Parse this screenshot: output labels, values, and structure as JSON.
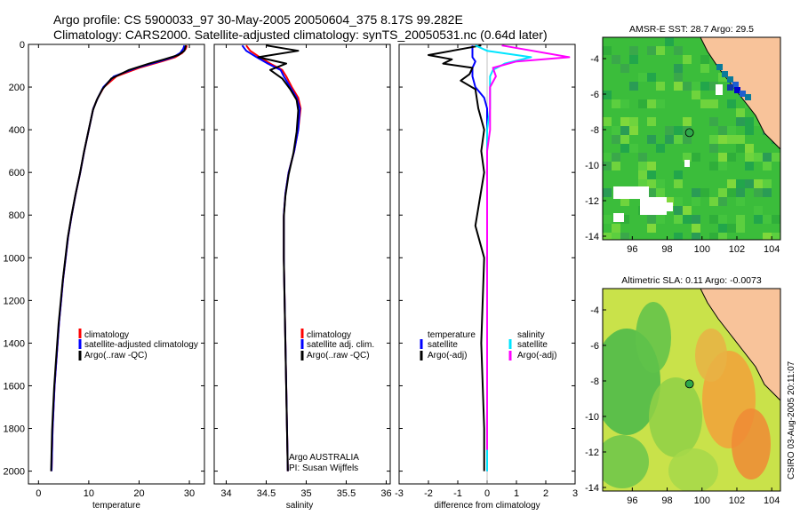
{
  "header": {
    "line1": "Argo profile: CS 5900033_97 30-May-2005 20050604_375 8.17S 99.282E",
    "line2": "Climatology: CARS2000. Satellite-adjusted climatology: synTS_20050531.nc (0.64d later)"
  },
  "colors": {
    "climatology": "#ff0000",
    "satellite": "#0000ff",
    "argo": "#000000",
    "salinity_diff": "#00e5ff",
    "salinity_argo_diff": "#ff00ff",
    "land": "#f8c39a",
    "profile_marker": "#2ea84a"
  },
  "chart_data": [
    {
      "type": "line",
      "name": "temperature-panel",
      "xlabel": "temperature",
      "ylabel": "",
      "xlim": [
        -2,
        33
      ],
      "ylim": [
        2060,
        0
      ],
      "xticks": [
        "0",
        "10",
        "20",
        "30"
      ],
      "xtick_values": [
        0,
        10,
        20,
        30
      ],
      "yticks": [
        "0",
        "200",
        "400",
        "600",
        "800",
        "1000",
        "1200",
        "1400",
        "1600",
        "1800",
        "2000"
      ],
      "ytick_values": [
        0,
        200,
        400,
        600,
        800,
        1000,
        1200,
        1400,
        1600,
        1800,
        2000
      ],
      "legend": [
        "climatology",
        "satellite-adjusted climatology",
        "Argo(..raw -QC)"
      ],
      "series": [
        {
          "name": "climatology",
          "color": "#ff0000",
          "x": [
            29.5,
            29.3,
            28.6,
            27.2,
            24.5,
            20.0,
            15.5,
            13.0,
            11.8,
            10.9,
            10.0,
            9.1,
            8.3,
            7.4,
            6.6,
            5.9,
            5.4,
            4.9,
            4.5,
            4.1,
            3.8,
            3.5,
            3.2,
            3.0,
            2.8,
            2.6
          ],
          "y": [
            5,
            20,
            40,
            60,
            80,
            110,
            150,
            200,
            250,
            300,
            400,
            500,
            600,
            700,
            800,
            900,
            1000,
            1100,
            1200,
            1300,
            1400,
            1500,
            1600,
            1700,
            1800,
            2000
          ]
        },
        {
          "name": "satellite-adjusted climatology",
          "color": "#0000ff",
          "x": [
            29.0,
            28.8,
            28.2,
            26.8,
            24.0,
            19.5,
            15.0,
            12.9,
            11.8,
            10.9,
            10.0,
            9.1,
            8.3,
            7.4,
            6.6,
            5.9,
            5.4,
            4.9,
            4.5,
            4.1,
            3.8,
            3.5,
            3.2,
            3.0,
            2.8,
            2.6
          ],
          "y": [
            5,
            20,
            40,
            60,
            80,
            110,
            150,
            200,
            250,
            300,
            400,
            500,
            600,
            700,
            800,
            900,
            1000,
            1100,
            1200,
            1300,
            1400,
            1500,
            1600,
            1700,
            1800,
            2000
          ]
        },
        {
          "name": "Argo(..raw -QC)",
          "color": "#000000",
          "x": [
            29.3,
            29.0,
            27.8,
            25.0,
            22.0,
            18.0,
            14.5,
            12.7,
            11.6,
            10.8,
            9.9,
            9.0,
            8.2,
            7.3,
            6.5,
            5.8,
            5.3,
            4.8,
            4.4,
            4.0,
            3.7,
            3.4,
            3.1,
            2.9,
            2.7,
            2.5
          ],
          "y": [
            5,
            30,
            50,
            70,
            90,
            120,
            160,
            210,
            260,
            310,
            410,
            510,
            610,
            710,
            810,
            910,
            1010,
            1110,
            1210,
            1310,
            1410,
            1510,
            1610,
            1710,
            1810,
            2000
          ]
        }
      ]
    },
    {
      "type": "line",
      "name": "salinity-panel",
      "xlabel": "salinity",
      "xlim": [
        33.85,
        36.05
      ],
      "ylim": [
        2060,
        0
      ],
      "xticks": [
        "34",
        "34.5",
        "35",
        "35.5",
        "36"
      ],
      "xtick_values": [
        34,
        34.5,
        35,
        35.5,
        36
      ],
      "legend": [
        "climatology",
        "satellite adj. clim.",
        "Argo(..raw -QC)"
      ],
      "annotations": [
        "Argo AUSTRALIA",
        "PI: Susan Wijffels"
      ],
      "series": [
        {
          "name": "climatology",
          "color": "#ff0000",
          "x": [
            34.25,
            34.3,
            34.42,
            34.55,
            34.7,
            34.75,
            34.82,
            34.9,
            34.93,
            34.9,
            34.85,
            34.78,
            34.74,
            34.72,
            34.72,
            34.73,
            34.74,
            34.75,
            34.76,
            34.77
          ],
          "y": [
            5,
            30,
            60,
            90,
            120,
            150,
            200,
            250,
            300,
            400,
            500,
            600,
            700,
            800,
            1000,
            1200,
            1400,
            1600,
            1800,
            2000
          ]
        },
        {
          "name": "satellite adj. clim.",
          "color": "#0000ff",
          "x": [
            34.2,
            34.25,
            34.38,
            34.52,
            34.68,
            34.72,
            34.8,
            34.88,
            34.92,
            34.9,
            34.85,
            34.78,
            34.74,
            34.72,
            34.72,
            34.73,
            34.74,
            34.75,
            34.76,
            34.77
          ],
          "y": [
            5,
            30,
            60,
            90,
            120,
            150,
            200,
            250,
            300,
            400,
            500,
            600,
            700,
            800,
            1000,
            1200,
            1400,
            1600,
            1800,
            2000
          ]
        },
        {
          "name": "Argo(..raw -QC)",
          "color": "#000000",
          "x": [
            34.5,
            34.9,
            34.4,
            34.75,
            34.55,
            34.7,
            34.8,
            34.88,
            34.9,
            34.88,
            34.84,
            34.78,
            34.74,
            34.72,
            34.72,
            34.73,
            34.74,
            34.75,
            34.76,
            34.77
          ],
          "y": [
            5,
            30,
            60,
            90,
            120,
            160,
            210,
            260,
            310,
            410,
            510,
            610,
            710,
            810,
            1010,
            1210,
            1410,
            1610,
            1810,
            2000
          ]
        }
      ]
    },
    {
      "type": "line",
      "name": "difference-panel",
      "xlabel": "difference from climatology",
      "xlim": [
        -3,
        3
      ],
      "ylim": [
        2060,
        0
      ],
      "xticks": [
        "-3",
        "-2",
        "-1",
        "0",
        "1",
        "2",
        "3"
      ],
      "xtick_values": [
        -3,
        -2,
        -1,
        0,
        1,
        2,
        3
      ],
      "legend_left": [
        "temperature",
        "satellite",
        "Argo(-adj)"
      ],
      "legend_right": [
        "salinity",
        "satellite",
        "Argo(-adj)"
      ],
      "series": [
        {
          "name": "temperature satellite",
          "color": "#0000ff",
          "x": [
            -0.5,
            -0.5,
            -0.5,
            -0.4,
            -0.5,
            -0.5,
            -0.4,
            -0.1,
            0.0,
            0.0,
            0.0,
            0.0,
            0.0,
            0.0,
            0.0,
            0.0,
            0.0
          ],
          "y": [
            5,
            30,
            60,
            80,
            110,
            150,
            200,
            250,
            300,
            400,
            500,
            600,
            800,
            1000,
            1400,
            1800,
            2000
          ]
        },
        {
          "name": "temperature Argo(-adj)",
          "color": "#000000",
          "x": [
            -0.2,
            -2.0,
            -1.2,
            -1.5,
            -0.5,
            -0.6,
            -0.9,
            -0.4,
            -0.3,
            -0.1,
            -0.2,
            -0.1,
            -0.4,
            -0.1,
            -0.2,
            -0.1,
            -0.1
          ],
          "y": [
            5,
            50,
            70,
            90,
            110,
            140,
            170,
            210,
            300,
            400,
            500,
            600,
            850,
            1000,
            1400,
            1800,
            2000
          ]
        },
        {
          "name": "salinity satellite",
          "color": "#00e5ff",
          "x": [
            -0.4,
            0.0,
            1.5,
            0.6,
            0.2,
            0.1,
            0.1,
            0.1,
            0.0,
            0.0,
            0.0,
            0.0,
            0.0,
            0.0,
            0.0
          ],
          "y": [
            5,
            30,
            60,
            90,
            120,
            150,
            200,
            300,
            400,
            500,
            600,
            800,
            1000,
            1400,
            2000
          ]
        },
        {
          "name": "salinity Argo(-adj)",
          "color": "#ff00ff",
          "x": [
            0.5,
            2.8,
            1.0,
            0.2,
            0.3,
            0.1,
            0.1,
            0.1,
            0.0,
            0.0,
            0.0,
            0.0,
            0.0,
            0.0
          ],
          "y": [
            5,
            60,
            80,
            110,
            150,
            200,
            300,
            400,
            500,
            600,
            800,
            1000,
            1400,
            1900
          ]
        }
      ]
    },
    {
      "type": "heatmap",
      "name": "sst-map",
      "title": "AMSR-E SST: 28.7 Argo: 29.5",
      "xlim": [
        94.3,
        104.5
      ],
      "ylim": [
        -14.2,
        -2.8
      ],
      "xticks": [
        "96",
        "98",
        "100",
        "102",
        "104"
      ],
      "xtick_values": [
        96,
        98,
        100,
        102,
        104
      ],
      "yticks": [
        "-4",
        "-6",
        "-8",
        "-10",
        "-12",
        "-14"
      ],
      "ytick_values": [
        -4,
        -6,
        -8,
        -10,
        -12,
        -14
      ],
      "profile_position": [
        99.28,
        -8.17
      ]
    },
    {
      "type": "heatmap",
      "name": "sla-map",
      "title": "Altimetric SLA: 0.11 Argo: -0.0073",
      "xlim": [
        94.3,
        104.5
      ],
      "ylim": [
        -14.2,
        -2.8
      ],
      "xticks": [
        "96",
        "98",
        "100",
        "102",
        "104"
      ],
      "xtick_values": [
        96,
        98,
        100,
        102,
        104
      ],
      "yticks": [
        "-4",
        "-6",
        "-8",
        "-10",
        "-12",
        "-14"
      ],
      "ytick_values": [
        -4,
        -6,
        -8,
        -10,
        -12,
        -14
      ],
      "profile_position": [
        99.28,
        -8.17
      ]
    }
  ],
  "side_label": "CSIRO 03-Aug-2005 20:11:07"
}
